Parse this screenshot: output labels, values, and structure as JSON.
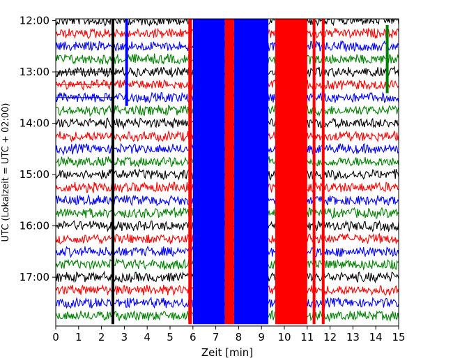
{
  "chart_data": {
    "type": "line",
    "title": "",
    "xlabel": "Zeit  [min]",
    "ylabel": "UTC (Lokalzeit = UTC + 02:00)",
    "xlim": [
      0,
      15
    ],
    "x_ticks": [
      "0",
      "1",
      "2",
      "3",
      "4",
      "5",
      "6",
      "7",
      "8",
      "9",
      "10",
      "11",
      "12",
      "13",
      "14",
      "15"
    ],
    "y_ticks": [
      "12:00",
      "13:00",
      "14:00",
      "15:00",
      "16:00",
      "17:00"
    ],
    "y_tick_times_min": [
      720,
      780,
      840,
      900,
      960,
      1020
    ],
    "ylim_min": [
      718,
      1077
    ],
    "y_inverted": true,
    "grid": false,
    "line_interval_min": 15,
    "line_colors": [
      "#000000",
      "#ff0000",
      "#0000ff",
      "#008000"
    ],
    "trace_start_times_min": [
      720,
      735,
      750,
      765,
      780,
      795,
      810,
      825,
      840,
      855,
      870,
      885,
      900,
      915,
      930,
      945,
      960,
      975,
      990,
      1005,
      1020,
      1035,
      1050,
      1065
    ],
    "disturbances": [
      {
        "type": "spike",
        "x_min": 2.5,
        "times_min": [
          720,
          1065
        ],
        "color": "#000000"
      },
      {
        "type": "spike",
        "x_min": 3.1,
        "times_min": [
          720,
          810
        ],
        "color": "#0000ff"
      },
      {
        "type": "block",
        "x_range_min": [
          5.8,
          5.95
        ],
        "times_min": [
          720,
          1065
        ],
        "color": "#ff0000"
      },
      {
        "type": "block",
        "x_range_min": [
          6.0,
          7.4
        ],
        "times_min": [
          720,
          1065
        ],
        "color": "#0000ff"
      },
      {
        "type": "block",
        "x_range_min": [
          7.4,
          7.8
        ],
        "times_min": [
          720,
          1065
        ],
        "color": "#ff0000"
      },
      {
        "type": "block",
        "x_range_min": [
          7.8,
          9.3
        ],
        "times_min": [
          720,
          1065
        ],
        "color": "#0000ff"
      },
      {
        "type": "block",
        "x_range_min": [
          9.6,
          11.0
        ],
        "times_min": [
          720,
          1065
        ],
        "color": "#ff0000"
      },
      {
        "type": "spike",
        "x_min": 11.3,
        "times_min": [
          720,
          1065
        ],
        "color": "#ff0000"
      },
      {
        "type": "spike",
        "x_min": 11.7,
        "times_min": [
          720,
          1065
        ],
        "color": "#ff0000"
      },
      {
        "type": "spike",
        "x_min": 14.5,
        "times_min": [
          735,
          795
        ],
        "color": "#008000"
      }
    ]
  }
}
